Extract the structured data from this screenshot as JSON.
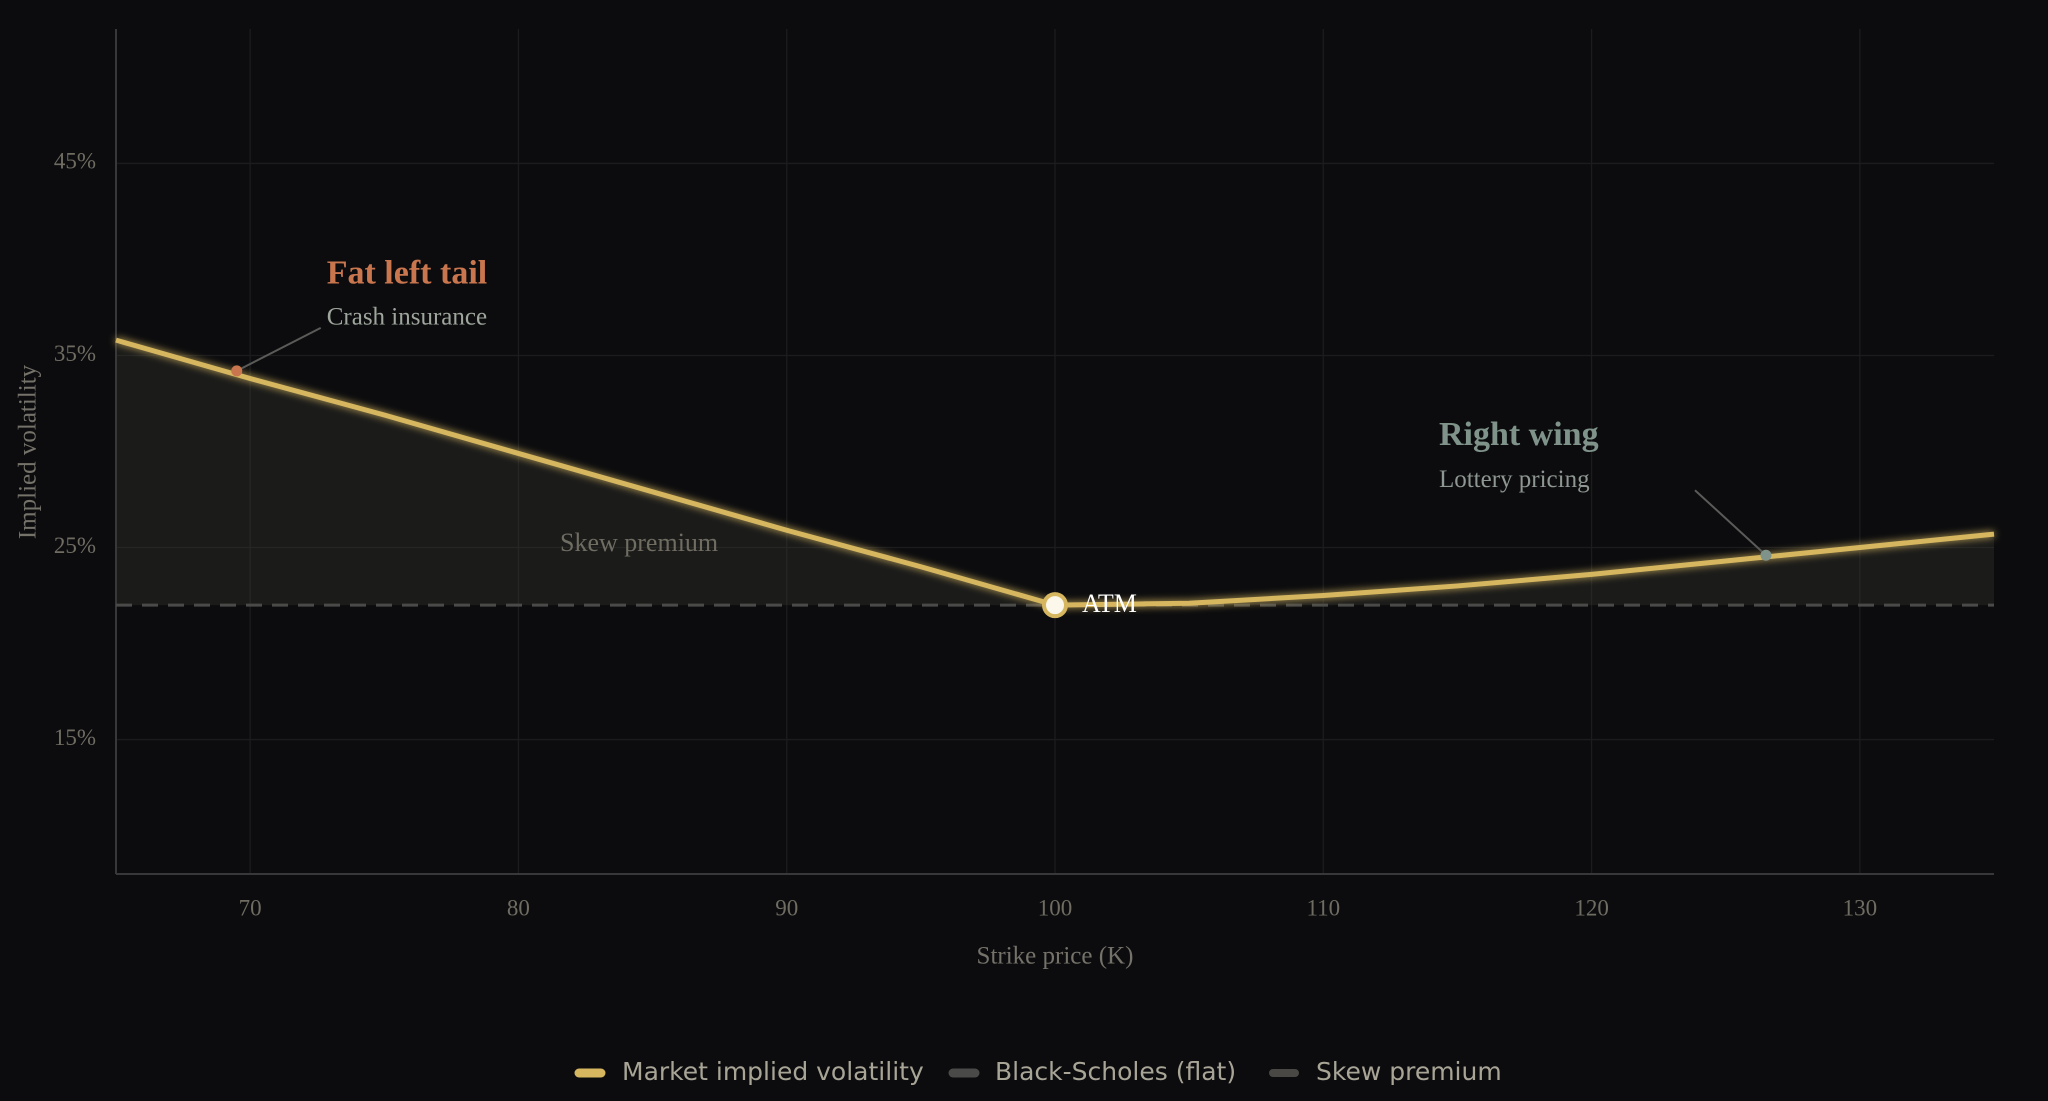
{
  "chart_data": {
    "type": "line",
    "x_label": "Strike price (K)",
    "y_label": "Implied volatility",
    "x": [
      65,
      70,
      75,
      80,
      85,
      90,
      95,
      100,
      105,
      110,
      115,
      120,
      125,
      130,
      135
    ],
    "series": [
      {
        "name": "Market implied volatility",
        "color": "#d6b760",
        "style": "solid",
        "values": [
          35.8,
          33.8,
          31.9,
          29.9,
          27.9,
          25.9,
          24.0,
          22.0,
          22.1,
          22.5,
          23.0,
          23.6,
          24.3,
          25.0,
          25.7
        ]
      },
      {
        "name": "Black-Scholes (flat)",
        "color": "#4a4a48",
        "style": "dashed",
        "values": [
          22,
          22,
          22,
          22,
          22,
          22,
          22,
          22,
          22,
          22,
          22,
          22,
          22,
          22,
          22
        ]
      },
      {
        "name": "Skew premium",
        "color": "#3a3832",
        "style": "area"
      }
    ],
    "region_label": "Skew premium",
    "atm": {
      "label": "ATM",
      "x": 100,
      "y": 22
    },
    "annotations": [
      {
        "title": "Fat left tail",
        "text": "Crash insurance",
        "x": 69.5,
        "y": 34.2,
        "color": "#c9764f"
      },
      {
        "title": "Right wing",
        "text": "Lottery pricing",
        "x": 126.5,
        "y": 24.6,
        "color": "#7f938b"
      }
    ],
    "xlim": [
      65,
      135
    ],
    "ylim": [
      8,
      52
    ],
    "xticks": [
      70,
      80,
      90,
      100,
      110,
      120,
      130
    ],
    "yticks": [
      {
        "value": 15,
        "label": "15%"
      },
      {
        "value": 25,
        "label": "25%"
      },
      {
        "value": 35,
        "label": "35%"
      },
      {
        "value": 45,
        "label": "45%"
      }
    ],
    "grid": true
  }
}
